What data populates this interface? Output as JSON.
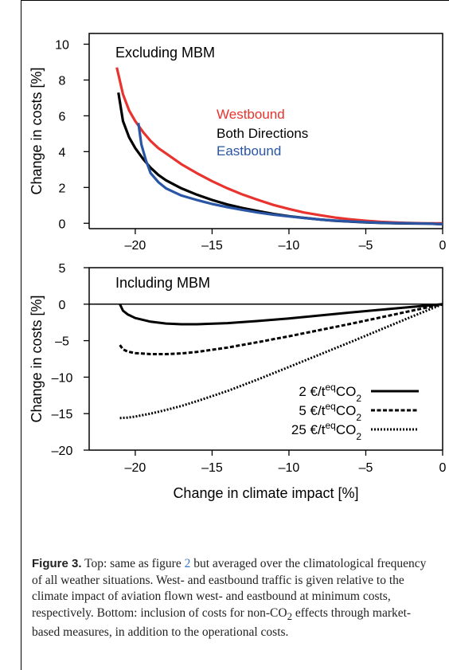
{
  "chart_data": [
    {
      "type": "line",
      "title": "Excluding MBM",
      "xlabel": "",
      "ylabel": "Change in costs [%]",
      "xlim": [
        -23,
        0
      ],
      "ylim": [
        -0.3,
        10.6
      ],
      "xticks": [
        "–20",
        "–15",
        "–10",
        "–5",
        "0"
      ],
      "yticks": [
        "0",
        "2",
        "4",
        "6",
        "8",
        "10"
      ],
      "grid": false,
      "legend_position": "center-right",
      "series": [
        {
          "name": "Westbound",
          "color": "#e8332e",
          "x": [
            -21.2,
            -20.8,
            -20.4,
            -20.0,
            -19.5,
            -19.0,
            -18.5,
            -18.0,
            -17.0,
            -16.0,
            -15.0,
            -14.0,
            -13.0,
            -12.0,
            -11.0,
            -10.0,
            -9.0,
            -8.0,
            -7.0,
            -6.0,
            -5.0,
            -4.0,
            -3.0,
            -2.0,
            -1.0,
            0.0
          ],
          "y": [
            8.7,
            7.2,
            6.3,
            5.7,
            5.1,
            4.6,
            4.2,
            3.9,
            3.3,
            2.8,
            2.35,
            1.95,
            1.6,
            1.3,
            1.02,
            0.8,
            0.6,
            0.45,
            0.32,
            0.22,
            0.14,
            0.08,
            0.04,
            0.01,
            0.0,
            0.0
          ]
        },
        {
          "name": "Both Directions",
          "color": "#000000",
          "x": [
            -21.1,
            -20.8,
            -20.4,
            -20.0,
            -19.5,
            -19.0,
            -18.5,
            -18.0,
            -17.0,
            -16.0,
            -15.0,
            -14.0,
            -13.0,
            -12.0,
            -11.0,
            -10.0,
            -9.0,
            -8.0,
            -7.0,
            -6.0,
            -5.0,
            -4.0,
            -3.0,
            -2.0,
            -1.0,
            0.0
          ],
          "y": [
            7.3,
            5.7,
            4.8,
            4.2,
            3.6,
            3.1,
            2.7,
            2.4,
            1.95,
            1.6,
            1.3,
            1.05,
            0.85,
            0.68,
            0.52,
            0.4,
            0.3,
            0.21,
            0.14,
            0.09,
            0.05,
            0.02,
            0.0,
            -0.01,
            -0.02,
            -0.05
          ]
        },
        {
          "name": "Eastbound",
          "color": "#2a55a5",
          "x": [
            -19.8,
            -19.6,
            -19.3,
            -19.0,
            -18.5,
            -18.0,
            -17.0,
            -16.0,
            -15.0,
            -14.0,
            -13.0,
            -12.0,
            -11.0,
            -10.0,
            -9.0,
            -8.0,
            -7.0,
            -6.0,
            -5.0,
            -4.0,
            -3.0,
            -2.0,
            -1.0,
            0.0
          ],
          "y": [
            5.6,
            4.4,
            3.5,
            2.8,
            2.3,
            1.95,
            1.55,
            1.3,
            1.08,
            0.9,
            0.74,
            0.6,
            0.48,
            0.38,
            0.29,
            0.21,
            0.15,
            0.1,
            0.06,
            0.03,
            0.01,
            0.0,
            -0.02,
            -0.05
          ]
        }
      ]
    },
    {
      "type": "line",
      "title": "Including MBM",
      "xlabel": "Change in climate impact [%]",
      "ylabel": "Change in costs [%]",
      "xlim": [
        -23,
        0
      ],
      "ylim": [
        -20,
        5
      ],
      "xticks": [
        "–20",
        "–15",
        "–10",
        "–5",
        "0"
      ],
      "yticks": [
        "5",
        "0",
        "–5",
        "–10",
        "–15",
        "–20"
      ],
      "grid": false,
      "legend_position": "bottom-right",
      "series": [
        {
          "name": "2 €/t",
          "sup": "eq",
          "suffix": "CO",
          "sub": "2",
          "dash": "solid",
          "x": [
            -21.0,
            -20.8,
            -20.5,
            -20.0,
            -19.0,
            -18.0,
            -17.0,
            -16.0,
            -14.0,
            -12.0,
            -10.0,
            -8.0,
            -6.0,
            -4.0,
            -2.0,
            0.0
          ],
          "y": [
            0.0,
            -0.9,
            -1.4,
            -1.9,
            -2.4,
            -2.65,
            -2.75,
            -2.75,
            -2.6,
            -2.3,
            -1.95,
            -1.55,
            -1.15,
            -0.75,
            -0.38,
            0.0
          ]
        },
        {
          "name": "5 €/t",
          "sup": "eq",
          "suffix": "CO",
          "sub": "2",
          "dash": "dashed",
          "x": [
            -21.0,
            -20.8,
            -20.5,
            -20.0,
            -19.0,
            -18.0,
            -17.0,
            -16.0,
            -14.0,
            -12.0,
            -10.0,
            -8.0,
            -6.0,
            -4.0,
            -2.0,
            0.0
          ],
          "y": [
            -5.6,
            -6.2,
            -6.5,
            -6.7,
            -6.85,
            -6.85,
            -6.75,
            -6.55,
            -5.95,
            -5.2,
            -4.4,
            -3.55,
            -2.7,
            -1.8,
            -0.9,
            0.0
          ]
        },
        {
          "name": "25 €/t",
          "sup": "eq",
          "suffix": "CO",
          "sub": "2",
          "dash": "dotted",
          "x": [
            -21.0,
            -20.5,
            -20.0,
            -19.0,
            -18.0,
            -17.0,
            -16.0,
            -14.0,
            -12.0,
            -10.0,
            -8.0,
            -6.0,
            -4.0,
            -2.0,
            0.0
          ],
          "y": [
            -15.6,
            -15.55,
            -15.4,
            -15.0,
            -14.5,
            -13.95,
            -13.3,
            -11.9,
            -10.3,
            -8.6,
            -6.9,
            -5.2,
            -3.45,
            -1.7,
            0.0
          ]
        }
      ]
    }
  ],
  "caption": {
    "label": "Figure 3.",
    "text_1": " Top: same as figure ",
    "ref": "2",
    "text_2": " but averaged over the climatological frequency of all weather situations. West- and eastbound traffic is given relative to the climate impact of aviation flown west- and eastbound at minimum costs, respectively. Bottom: inclusion of costs for non-CO",
    "sub": "2",
    "text_3": " effects through market-based measures, in addition to the operational costs."
  }
}
